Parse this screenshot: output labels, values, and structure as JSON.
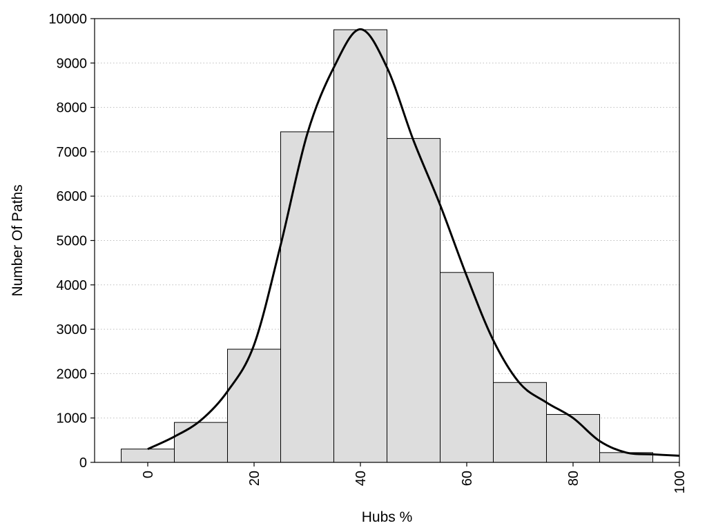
{
  "chart_data": {
    "type": "bar",
    "title": "",
    "xlabel": "Hubs %",
    "ylabel": "Number Of Paths",
    "xlim": [
      -10,
      100
    ],
    "ylim": [
      0,
      10000
    ],
    "x_ticks": [
      0,
      20,
      40,
      60,
      80,
      100
    ],
    "y_ticks": [
      0,
      1000,
      2000,
      3000,
      4000,
      5000,
      6000,
      7000,
      8000,
      9000,
      10000
    ],
    "grid": "horizontal-dotted",
    "bin_width": 10,
    "bars": [
      {
        "x": 0,
        "value": 300
      },
      {
        "x": 10,
        "value": 900
      },
      {
        "x": 20,
        "value": 2550
      },
      {
        "x": 30,
        "value": 7450
      },
      {
        "x": 40,
        "value": 9750
      },
      {
        "x": 50,
        "value": 7300
      },
      {
        "x": 60,
        "value": 4280
      },
      {
        "x": 70,
        "value": 1800
      },
      {
        "x": 80,
        "value": 1080
      },
      {
        "x": 90,
        "value": 220
      }
    ],
    "curve": {
      "x": [
        0,
        5,
        10,
        15,
        20,
        25,
        30,
        35,
        40,
        45,
        50,
        55,
        60,
        65,
        70,
        75,
        80,
        85,
        90,
        95,
        100
      ],
      "y": [
        300,
        580,
        950,
        1600,
        2650,
        4900,
        7400,
        8900,
        9760,
        8900,
        7250,
        5800,
        4200,
        2750,
        1780,
        1350,
        1000,
        480,
        220,
        180,
        150
      ]
    },
    "colors": {
      "bar_fill": "#dddddd",
      "bar_stroke": "#000000",
      "curve": "#000000",
      "grid": "#bbbbbb"
    }
  }
}
